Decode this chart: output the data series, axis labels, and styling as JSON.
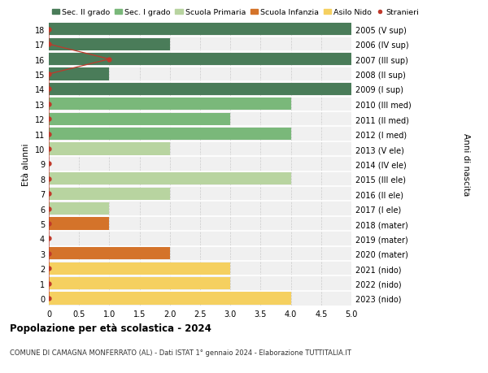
{
  "ages": [
    0,
    1,
    2,
    3,
    4,
    5,
    6,
    7,
    8,
    9,
    10,
    11,
    12,
    13,
    14,
    15,
    16,
    17,
    18
  ],
  "right_labels": [
    "2023 (nido)",
    "2022 (nido)",
    "2021 (nido)",
    "2020 (mater)",
    "2019 (mater)",
    "2018 (mater)",
    "2017 (I ele)",
    "2016 (II ele)",
    "2015 (III ele)",
    "2014 (IV ele)",
    "2013 (V ele)",
    "2012 (I med)",
    "2011 (II med)",
    "2010 (III med)",
    "2009 (I sup)",
    "2008 (II sup)",
    "2007 (III sup)",
    "2006 (IV sup)",
    "2005 (V sup)"
  ],
  "sec2_values": [
    0,
    0,
    0,
    0,
    0,
    0,
    0,
    0,
    0,
    0,
    0,
    0,
    0,
    0,
    5.0,
    1.0,
    5.0,
    2.0,
    5.0
  ],
  "sec1_values": [
    0,
    0,
    0,
    0,
    0,
    0,
    0,
    0,
    0,
    0,
    0,
    4.0,
    3.0,
    4.0,
    0,
    0,
    0,
    0,
    0
  ],
  "primaria_values": [
    0,
    0,
    0,
    0,
    0,
    0,
    1.0,
    2.0,
    4.0,
    0,
    2.0,
    0,
    0,
    0,
    0,
    0,
    0,
    0,
    0
  ],
  "infanzia_values": [
    0,
    0,
    0,
    2.0,
    0,
    1.0,
    0,
    0,
    0,
    0,
    0,
    0,
    0,
    0,
    0,
    0,
    0,
    0,
    0
  ],
  "nido_values": [
    4.0,
    3.0,
    3.0,
    0,
    0,
    0,
    0,
    0,
    0,
    0,
    0,
    0,
    0,
    0,
    0,
    0,
    0,
    0,
    0
  ],
  "stranieri_x": [
    0,
    0,
    0,
    0,
    0,
    0,
    0,
    0,
    0,
    0,
    0,
    0,
    0,
    0,
    0,
    0,
    1.0,
    0,
    0
  ],
  "color_sec2": "#4a7c59",
  "color_sec1": "#7ab87a",
  "color_primaria": "#b8d4a0",
  "color_infanzia": "#d4732a",
  "color_nido": "#f5d060",
  "color_stranieri": "#c0392b",
  "color_bg": "#f0f0f0",
  "color_grid": "#cccccc",
  "title": "Popolazione per età scolastica - 2024",
  "subtitle": "COMUNE DI CAMAGNA MONFERRATO (AL) - Dati ISTAT 1° gennaio 2024 - Elaborazione TUTTITALIA.IT",
  "ylabel_left": "Età alunni",
  "ylabel_right": "Anni di nascita",
  "xlim": [
    0,
    5.0
  ],
  "legend_labels": [
    "Sec. II grado",
    "Sec. I grado",
    "Scuola Primaria",
    "Scuola Infanzia",
    "Asilo Nido",
    "Stranieri"
  ]
}
